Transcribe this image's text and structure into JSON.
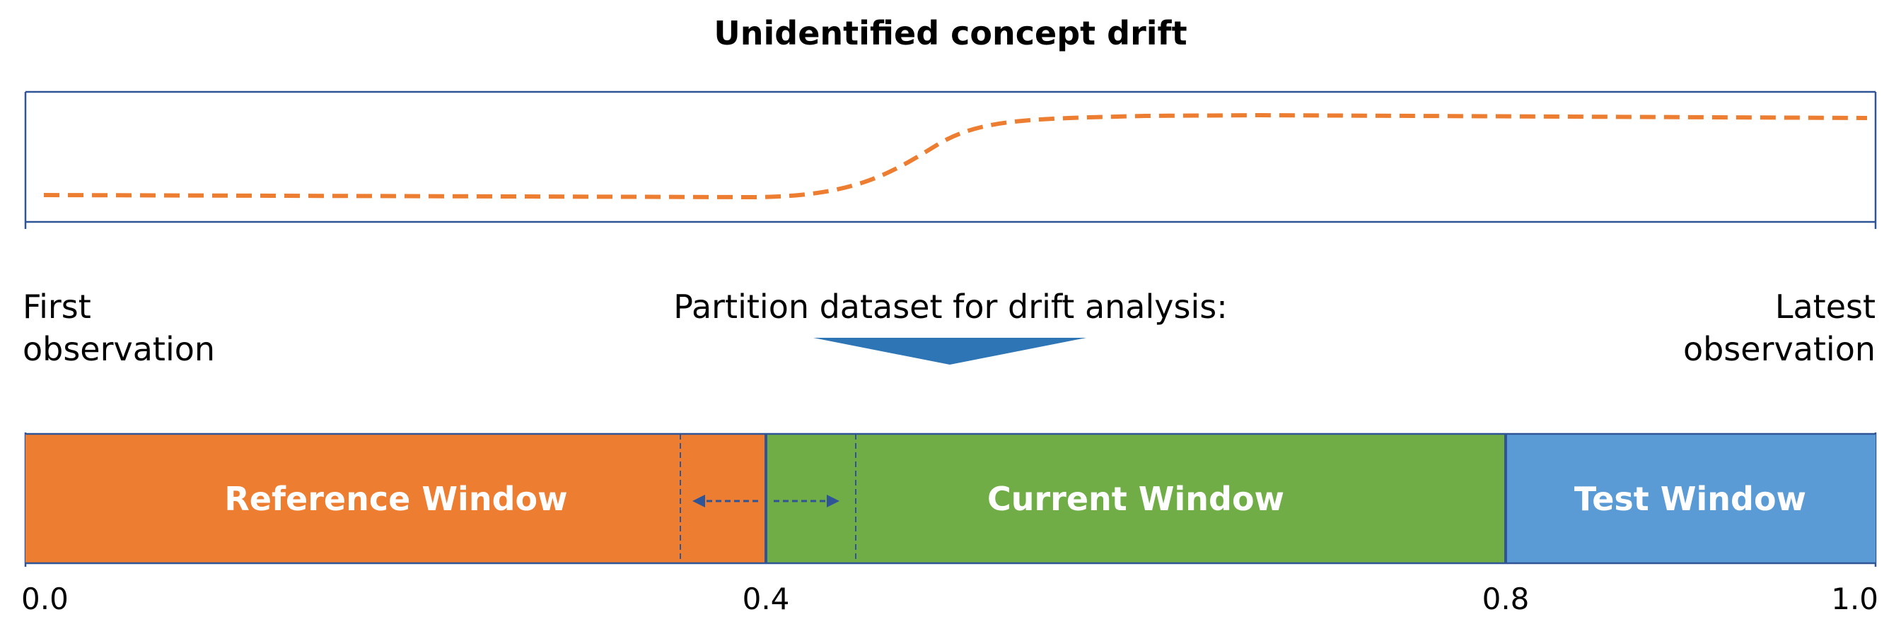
{
  "title": "Unidentified concept drift",
  "first_observation": [
    "First",
    "observation"
  ],
  "latest_observation": [
    "Latest",
    "observation"
  ],
  "partition_caption": "Partition dataset for drift analysis:",
  "windows": [
    {
      "label": "Reference Window",
      "start": 0.0,
      "end": 0.4,
      "color": "#ED7D31"
    },
    {
      "label": "Current Window",
      "start": 0.4,
      "end": 0.8,
      "color": "#70AD47"
    },
    {
      "label": "Test Window",
      "start": 0.8,
      "end": 1.0,
      "color": "#5B9BD5"
    }
  ],
  "ticks": [
    "0.0",
    "0.4",
    "0.8",
    "1.0"
  ],
  "colors": {
    "frame": "#2F5597",
    "drift_line": "#ED7D31",
    "arrow_fill": "#2E75B6",
    "boundary_arrow": "#2F5597"
  }
}
